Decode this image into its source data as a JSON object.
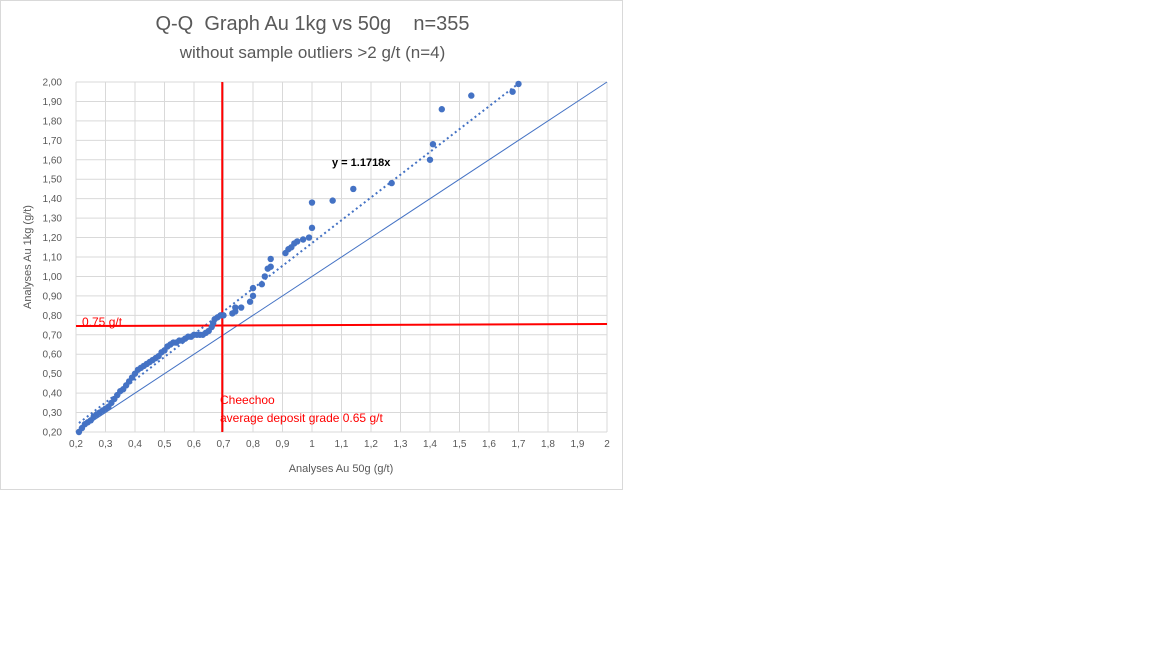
{
  "chart_data": {
    "type": "scatter",
    "title": "Q-Q  Graph Au 1kg vs 50g    n=355",
    "subtitle": "without sample outliers >2 g/t (n=4)",
    "xlabel": "Analyses Au 50g (g/t)",
    "ylabel": "Analyses Au 1kg (g/t)",
    "xlim": [
      0.2,
      2.0
    ],
    "ylim": [
      0.2,
      2.0
    ],
    "xticks": [
      "0,2",
      "0,3",
      "0,4",
      "0,5",
      "0,6",
      "0,7",
      "0,8",
      "0,9",
      "1",
      "1,1",
      "1,2",
      "1,3",
      "1,4",
      "1,5",
      "1,6",
      "1,7",
      "1,8",
      "1,9",
      "2"
    ],
    "yticks": [
      "0,20",
      "0,30",
      "0,40",
      "0,50",
      "0,60",
      "0,70",
      "0,80",
      "0,90",
      "1,00",
      "1,10",
      "1,20",
      "1,30",
      "1,40",
      "1,50",
      "1,60",
      "1,70",
      "1,80",
      "1,90",
      "2,00"
    ],
    "grid": true,
    "series": [
      {
        "color": "#4472c4",
        "x": [
          0.21,
          0.22,
          0.23,
          0.24,
          0.25,
          0.26,
          0.27,
          0.28,
          0.29,
          0.3,
          0.31,
          0.32,
          0.33,
          0.34,
          0.35,
          0.36,
          0.37,
          0.38,
          0.39,
          0.4,
          0.41,
          0.42,
          0.43,
          0.44,
          0.45,
          0.46,
          0.47,
          0.48,
          0.49,
          0.5,
          0.51,
          0.52,
          0.53,
          0.54,
          0.55,
          0.56,
          0.57,
          0.58,
          0.59,
          0.6,
          0.61,
          0.62,
          0.63,
          0.64,
          0.65,
          0.66,
          0.665,
          0.67,
          0.68,
          0.69,
          0.7,
          0.73,
          0.74,
          0.74,
          0.76,
          0.79,
          0.8,
          0.8,
          0.83,
          0.84,
          0.85,
          0.86,
          0.86,
          0.91,
          0.92,
          0.93,
          0.94,
          0.95,
          0.97,
          0.99,
          1.0,
          1.0,
          1.07,
          1.14,
          1.27,
          1.4,
          1.41,
          1.44,
          1.54,
          1.68,
          1.7
        ],
        "y": [
          0.2,
          0.22,
          0.24,
          0.25,
          0.26,
          0.28,
          0.29,
          0.3,
          0.31,
          0.32,
          0.33,
          0.35,
          0.37,
          0.39,
          0.41,
          0.42,
          0.44,
          0.46,
          0.48,
          0.5,
          0.52,
          0.53,
          0.54,
          0.55,
          0.56,
          0.57,
          0.58,
          0.59,
          0.61,
          0.62,
          0.64,
          0.65,
          0.66,
          0.66,
          0.67,
          0.67,
          0.68,
          0.69,
          0.69,
          0.7,
          0.7,
          0.7,
          0.7,
          0.71,
          0.72,
          0.74,
          0.76,
          0.78,
          0.79,
          0.8,
          0.8,
          0.81,
          0.82,
          0.84,
          0.84,
          0.87,
          0.9,
          0.94,
          0.96,
          1.0,
          1.04,
          1.05,
          1.09,
          1.12,
          1.14,
          1.15,
          1.17,
          1.18,
          1.19,
          1.2,
          1.25,
          1.38,
          1.39,
          1.45,
          1.48,
          1.6,
          1.68,
          1.86,
          1.93,
          1.95,
          1.99
        ]
      }
    ],
    "trendline": {
      "slope": 1.1718,
      "style": "dotted",
      "label": "y = 1.1718x",
      "color": "#4472c4"
    },
    "reference_line": {
      "slope": 1,
      "color": "#4472c4"
    },
    "hline": {
      "y": 0.75,
      "label": "0.75 g/t",
      "color": "#ff0000"
    },
    "vline": {
      "x": 0.65,
      "label_line1": "Cheechoo",
      "label_line2": "average deposit grade 0.65 g/t",
      "color": "#ff0000"
    }
  }
}
